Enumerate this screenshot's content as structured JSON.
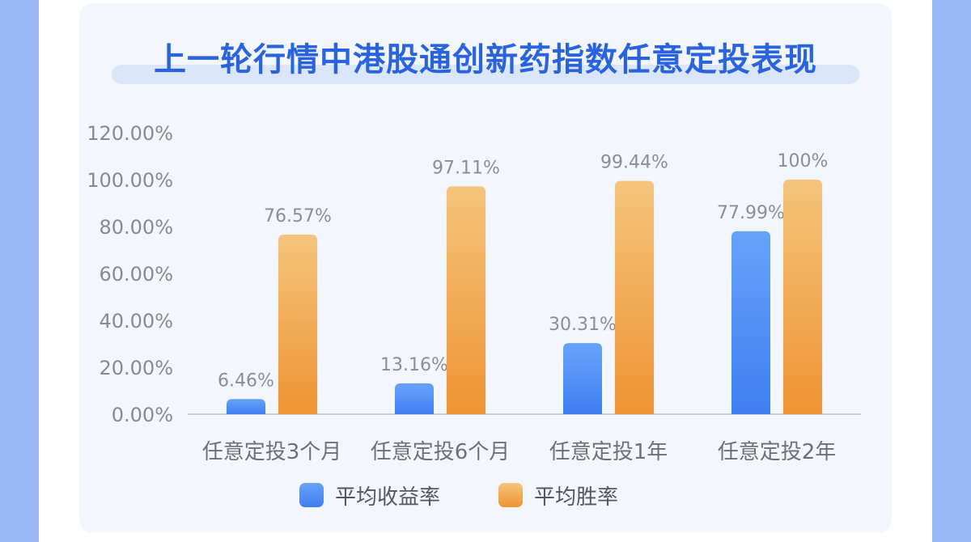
{
  "colors": {
    "series1_top": "#67a3fb",
    "series1_bottom": "#3f7ef0",
    "series2_top": "#f5c47c",
    "series2_bottom": "#ee9433",
    "title": "#2a63de"
  },
  "chart_data": {
    "type": "bar",
    "title": "上一轮行情中港股通创新药指数任意定投表现",
    "categories": [
      "任意定投3个月",
      "任意定投6个月",
      "任意定投1年",
      "任意定投2年"
    ],
    "series": [
      {
        "name": "平均收益率",
        "values": [
          6.46,
          13.16,
          30.31,
          77.99
        ],
        "labels": [
          "6.46%",
          "13.16%",
          "30.31%",
          "77.99%"
        ]
      },
      {
        "name": "平均胜率",
        "values": [
          76.57,
          97.11,
          99.44,
          100
        ],
        "labels": [
          "76.57%",
          "97.11%",
          "99.44%",
          "100%"
        ]
      }
    ],
    "ylim": [
      0,
      120
    ],
    "yticks": [
      0,
      20,
      40,
      60,
      80,
      100,
      120
    ],
    "ytick_labels": [
      "0.00%",
      "20.00%",
      "40.00%",
      "60.00%",
      "80.00%",
      "100.00%",
      "120.00%"
    ],
    "grid": false,
    "legend_position": "bottom-center"
  }
}
